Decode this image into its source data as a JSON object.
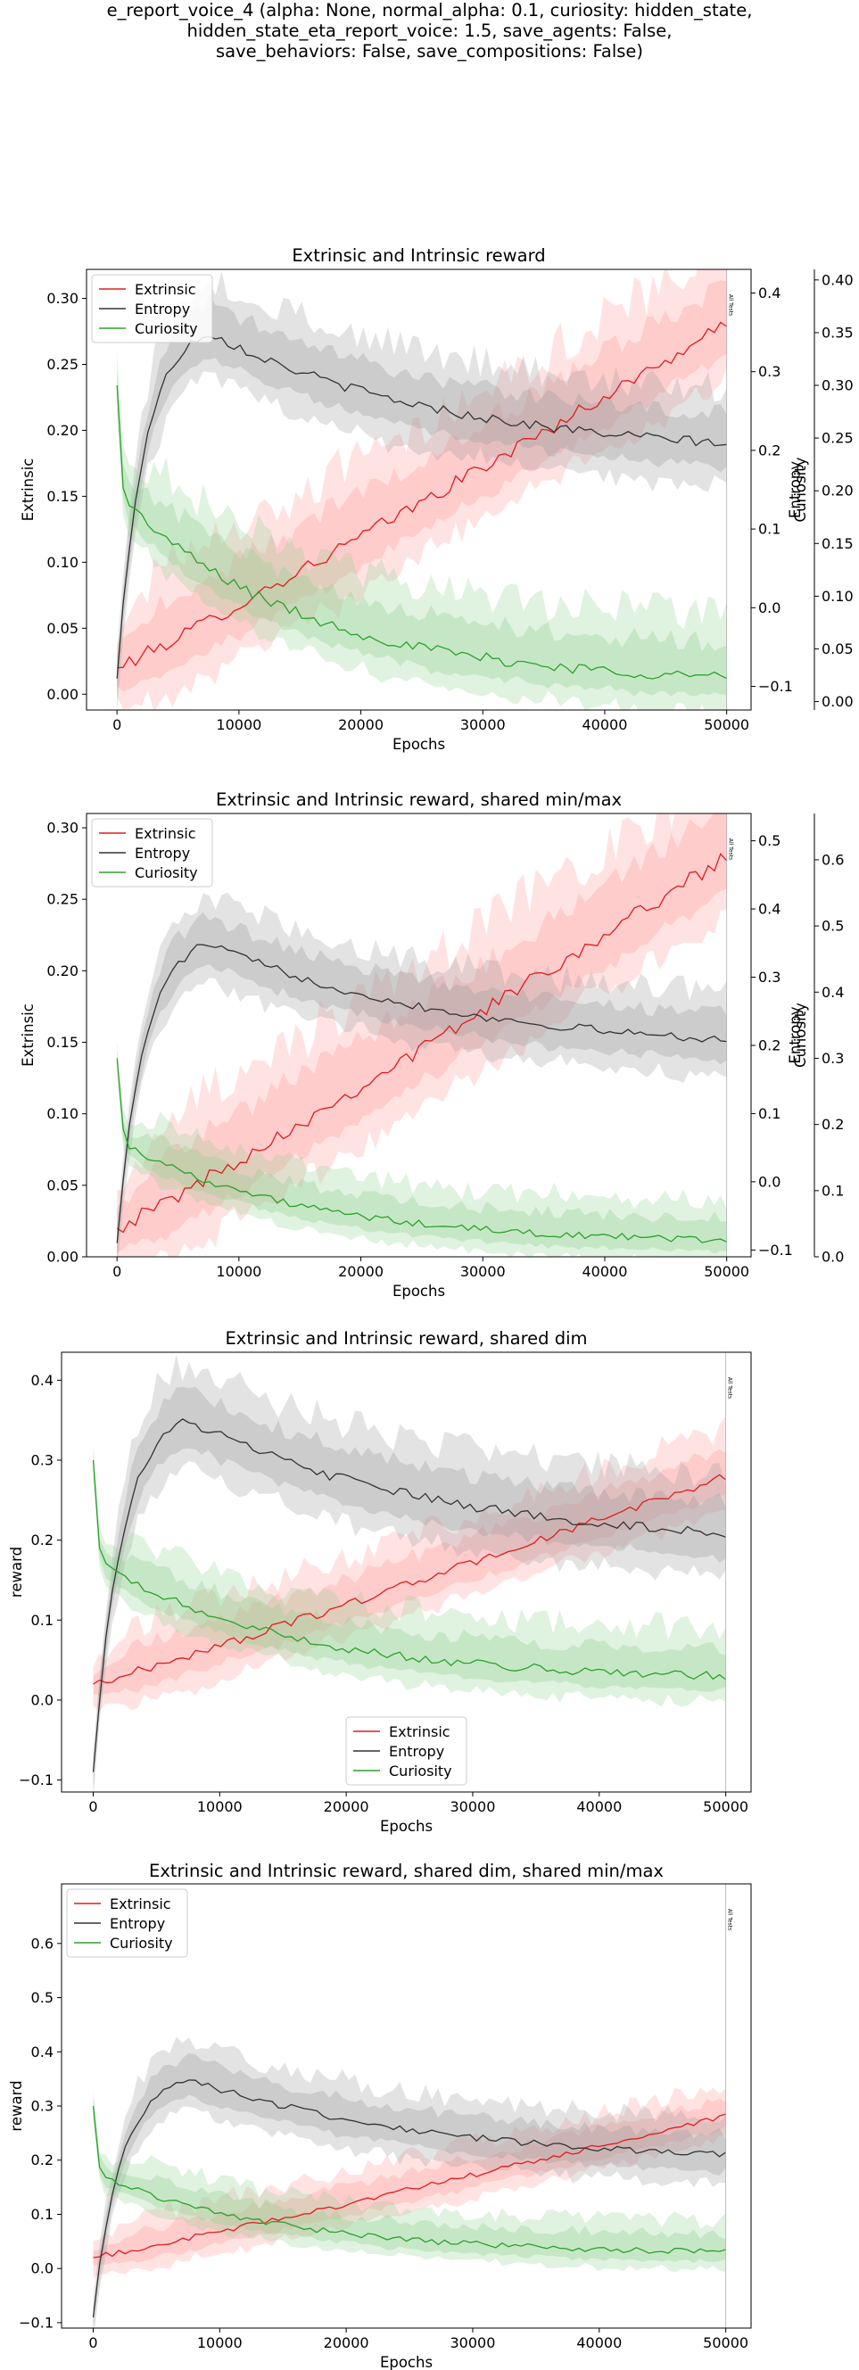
{
  "figure": {
    "suptitle_lines": [
      "e_report_voice_4 (alpha: None, normal_alpha: 0.1, curiosity: hidden_state,",
      "hidden_state_eta_report_voice: 1.5, save_agents: False,",
      "save_behaviors: False, save_compositions: False)"
    ],
    "vline_label": "All Tests",
    "colors": {
      "extrinsic": "#e31a1c",
      "entropy": "#333333",
      "curiosity": "#2ca02c"
    }
  },
  "chart_data": [
    {
      "type": "line",
      "title": "Extrinsic and Intrinsic reward",
      "xlabel": "Epochs",
      "xlim": [
        -2500,
        52000
      ],
      "xticks": [
        0,
        10000,
        20000,
        30000,
        40000,
        50000
      ],
      "vline_x": 50000,
      "legend": "top-left",
      "axes": [
        {
          "id": "ext",
          "label": "Extrinsic",
          "side": "left",
          "lim": [
            -0.012,
            0.322
          ],
          "ticks": [
            0.0,
            0.05,
            0.1,
            0.15,
            0.2,
            0.25,
            0.3
          ],
          "tick_labels": [
            "0.00",
            "0.05",
            "0.10",
            "0.15",
            "0.20",
            "0.25",
            "0.30"
          ]
        },
        {
          "id": "ent",
          "label": "Entropy",
          "side": "right",
          "lim": [
            -0.13,
            0.43
          ],
          "ticks": [
            -0.1,
            0.0,
            0.1,
            0.2,
            0.3,
            0.4
          ],
          "tick_labels": [
            "−0.1",
            "0.0",
            "0.1",
            "0.2",
            "0.3",
            "0.4"
          ]
        },
        {
          "id": "cur",
          "label": "Curiosity",
          "side": "right-outer",
          "lim": [
            -0.008,
            0.41
          ],
          "ticks": [
            0.0,
            0.05,
            0.1,
            0.15,
            0.2,
            0.25,
            0.3,
            0.35,
            0.4
          ],
          "tick_labels": [
            "0.00",
            "0.05",
            "0.10",
            "0.15",
            "0.20",
            "0.25",
            "0.30",
            "0.35",
            "0.40"
          ]
        }
      ],
      "series": [
        {
          "name": "Extrinsic",
          "key": "extrinsic",
          "axis": "ext",
          "profile": "ext",
          "scale": [
            0.02,
            0.28
          ],
          "band": [
            0.06,
            0.02
          ]
        },
        {
          "name": "Entropy",
          "key": "entropy",
          "axis": "ent",
          "profile": "ent",
          "scale": [
            -0.09,
            0.35,
            0.19
          ],
          "band": [
            0.07,
            0.03
          ]
        },
        {
          "name": "Curiosity",
          "key": "curiosity",
          "axis": "cur",
          "profile": "cur",
          "scale": [
            0.3,
            0.19,
            0.017
          ],
          "band": [
            0.06,
            0.012
          ]
        }
      ]
    },
    {
      "type": "line",
      "title": "Extrinsic and Intrinsic reward, shared min/max",
      "xlabel": "Epochs",
      "xlim": [
        -2500,
        52000
      ],
      "xticks": [
        0,
        10000,
        20000,
        30000,
        40000,
        50000
      ],
      "vline_x": 50000,
      "legend": "top-left",
      "axes": [
        {
          "id": "ext",
          "label": "Extrinsic",
          "side": "left",
          "lim": [
            0.0,
            0.31
          ],
          "ticks": [
            0.0,
            0.05,
            0.1,
            0.15,
            0.2,
            0.25,
            0.3
          ],
          "tick_labels": [
            "0.00",
            "0.05",
            "0.10",
            "0.15",
            "0.20",
            "0.25",
            "0.30"
          ]
        },
        {
          "id": "ent",
          "label": "Entropy",
          "side": "right",
          "lim": [
            -0.11,
            0.54
          ],
          "ticks": [
            -0.1,
            0.0,
            0.1,
            0.2,
            0.3,
            0.4,
            0.5
          ],
          "tick_labels": [
            "−0.1",
            "0.0",
            "0.1",
            "0.2",
            "0.3",
            "0.4",
            "0.5"
          ]
        },
        {
          "id": "cur",
          "label": "Curiosity",
          "side": "right-outer",
          "lim": [
            0.0,
            0.67
          ],
          "ticks": [
            0.0,
            0.1,
            0.2,
            0.3,
            0.4,
            0.5,
            0.6
          ],
          "tick_labels": [
            "0.0",
            "0.1",
            "0.2",
            "0.3",
            "0.4",
            "0.5",
            "0.6"
          ]
        }
      ],
      "series": [
        {
          "name": "Extrinsic",
          "key": "extrinsic",
          "axis": "ext",
          "profile": "ext",
          "scale": [
            0.02,
            0.28
          ],
          "band": [
            0.06,
            0.02
          ]
        },
        {
          "name": "Entropy",
          "key": "entropy",
          "axis": "ent",
          "profile": "ent",
          "scale": [
            -0.09,
            0.35,
            0.19
          ],
          "band": [
            0.07,
            0.03
          ]
        },
        {
          "name": "Curiosity",
          "key": "curiosity",
          "axis": "cur",
          "profile": "cur",
          "scale": [
            0.3,
            0.17,
            0.02
          ],
          "band": [
            0.06,
            0.012
          ]
        }
      ]
    },
    {
      "type": "line",
      "title": "Extrinsic and Intrinsic reward, shared dim",
      "xlabel": "Epochs",
      "xlim": [
        -2500,
        52000
      ],
      "xticks": [
        0,
        10000,
        20000,
        30000,
        40000,
        50000
      ],
      "vline_x": 50000,
      "legend": "bottom-center",
      "axes": [
        {
          "id": "rew",
          "label": "reward",
          "side": "left",
          "lim": [
            -0.115,
            0.435
          ],
          "ticks": [
            -0.1,
            0.0,
            0.1,
            0.2,
            0.3,
            0.4
          ],
          "tick_labels": [
            "−0.1",
            "0.0",
            "0.1",
            "0.2",
            "0.3",
            "0.4"
          ]
        }
      ],
      "series": [
        {
          "name": "Extrinsic",
          "key": "extrinsic",
          "axis": "rew",
          "profile": "ext",
          "scale": [
            0.02,
            0.28
          ],
          "band": [
            0.06,
            0.02
          ]
        },
        {
          "name": "Entropy",
          "key": "entropy",
          "axis": "rew",
          "profile": "ent",
          "scale": [
            -0.09,
            0.35,
            0.19
          ],
          "band": [
            0.07,
            0.03
          ]
        },
        {
          "name": "Curiosity",
          "key": "curiosity",
          "axis": "rew",
          "profile": "cur",
          "scale": [
            0.3,
            0.17,
            0.025
          ],
          "band": [
            0.06,
            0.012
          ]
        }
      ]
    },
    {
      "type": "line",
      "title": "Extrinsic and Intrinsic reward, shared dim, shared min/max",
      "xlabel": "Epochs",
      "xlim": [
        -2500,
        52000
      ],
      "xticks": [
        0,
        10000,
        20000,
        30000,
        40000,
        50000
      ],
      "vline_x": 50000,
      "legend": "top-left",
      "axes": [
        {
          "id": "rew",
          "label": "reward",
          "side": "left",
          "lim": [
            -0.11,
            0.71
          ],
          "ticks": [
            -0.1,
            0.0,
            0.1,
            0.2,
            0.3,
            0.4,
            0.5,
            0.6
          ],
          "tick_labels": [
            "−0.1",
            "0.0",
            "0.1",
            "0.2",
            "0.3",
            "0.4",
            "0.5",
            "0.6"
          ]
        }
      ],
      "series": [
        {
          "name": "Extrinsic",
          "key": "extrinsic",
          "axis": "rew",
          "profile": "ext",
          "scale": [
            0.02,
            0.28
          ],
          "band": [
            0.06,
            0.02
          ]
        },
        {
          "name": "Entropy",
          "key": "entropy",
          "axis": "rew",
          "profile": "ent",
          "scale": [
            -0.09,
            0.35,
            0.19
          ],
          "band": [
            0.07,
            0.03
          ]
        },
        {
          "name": "Curiosity",
          "key": "curiosity",
          "axis": "rew",
          "profile": "cur",
          "scale": [
            0.3,
            0.17,
            0.025
          ],
          "band": [
            0.06,
            0.012
          ]
        }
      ]
    }
  ]
}
